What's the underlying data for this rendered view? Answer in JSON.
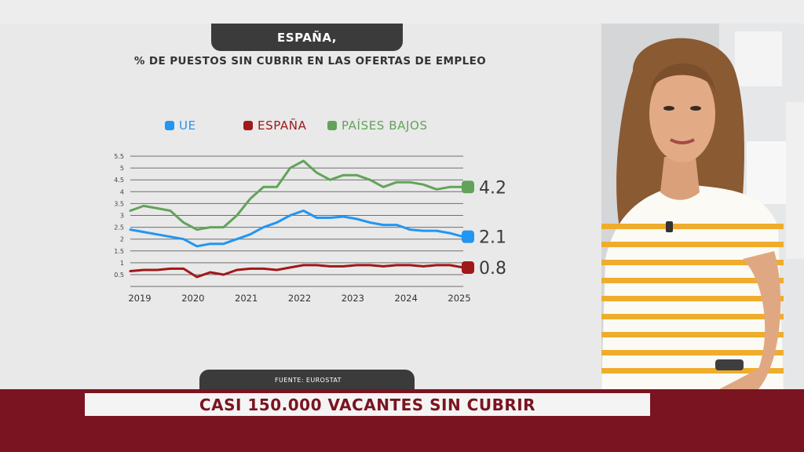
{
  "chart_data": {
    "type": "line",
    "title": "ESPAÑA,",
    "subtitle": "% DE PUESTOS SIN CUBRIR EN LAS OFERTAS DE EMPLEO",
    "xlabel": "",
    "ylabel": "",
    "x_ticks": [
      "2019",
      "2020",
      "2021",
      "2022",
      "2023",
      "2024",
      "2025"
    ],
    "y_ticks": [
      "0.5",
      "1",
      "1.5",
      "2",
      "2.5",
      "3",
      "3.5",
      "4",
      "4.5",
      "5",
      "5.5"
    ],
    "ylim": [
      0.5,
      5.5
    ],
    "xlim": [
      2019,
      2025.25
    ],
    "grid": true,
    "legend_position": "top",
    "series": [
      {
        "name": "UE",
        "color": "#2196f3",
        "end_label": "2.1",
        "x": [
          2019,
          2019.25,
          2019.5,
          2019.75,
          2020,
          2020.25,
          2020.5,
          2020.75,
          2021,
          2021.25,
          2021.5,
          2021.75,
          2022,
          2022.25,
          2022.5,
          2022.75,
          2023,
          2023.25,
          2023.5,
          2023.75,
          2024,
          2024.25,
          2024.5,
          2024.75,
          2025,
          2025.25
        ],
        "values": [
          2.4,
          2.3,
          2.2,
          2.1,
          2.0,
          1.7,
          1.8,
          1.8,
          2.0,
          2.2,
          2.5,
          2.7,
          3.0,
          3.2,
          2.9,
          2.9,
          2.95,
          2.85,
          2.7,
          2.6,
          2.6,
          2.4,
          2.35,
          2.35,
          2.25,
          2.1
        ]
      },
      {
        "name": "ESPAÑA",
        "color": "#a01818",
        "end_label": "0.8",
        "x": [
          2019,
          2019.25,
          2019.5,
          2019.75,
          2020,
          2020.25,
          2020.5,
          2020.75,
          2021,
          2021.25,
          2021.5,
          2021.75,
          2022,
          2022.25,
          2022.5,
          2022.75,
          2023,
          2023.25,
          2023.5,
          2023.75,
          2024,
          2024.25,
          2024.5,
          2024.75,
          2025,
          2025.25
        ],
        "values": [
          0.65,
          0.7,
          0.7,
          0.75,
          0.75,
          0.4,
          0.6,
          0.5,
          0.7,
          0.75,
          0.75,
          0.7,
          0.8,
          0.9,
          0.9,
          0.85,
          0.85,
          0.9,
          0.9,
          0.85,
          0.9,
          0.9,
          0.85,
          0.9,
          0.9,
          0.8
        ]
      },
      {
        "name": "PAÍSES BAJOS",
        "color": "#62a35a",
        "end_label": "4.2",
        "x": [
          2019,
          2019.25,
          2019.5,
          2019.75,
          2020,
          2020.25,
          2020.5,
          2020.75,
          2021,
          2021.25,
          2021.5,
          2021.75,
          2022,
          2022.25,
          2022.5,
          2022.75,
          2023,
          2023.25,
          2023.5,
          2023.75,
          2024,
          2024.25,
          2024.5,
          2024.75,
          2025,
          2025.25
        ],
        "values": [
          3.2,
          3.4,
          3.3,
          3.2,
          2.7,
          2.4,
          2.5,
          2.5,
          3.0,
          3.7,
          4.2,
          4.2,
          5.0,
          5.3,
          4.8,
          4.5,
          4.7,
          4.7,
          4.5,
          4.2,
          4.4,
          4.4,
          4.3,
          4.1,
          4.2,
          4.2
        ]
      }
    ]
  },
  "source": "FUENTE: EUROSTAT",
  "headline": "CASI 150.000 VACANTES SIN CUBRIR"
}
